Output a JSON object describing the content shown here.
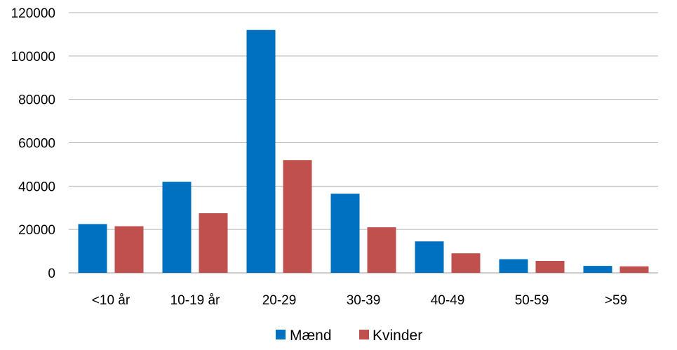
{
  "chart_data": {
    "type": "bar",
    "categories": [
      "<10 år",
      "10-19 år",
      "20-29",
      "30-39",
      "40-49",
      "50-59",
      ">59"
    ],
    "series": [
      {
        "name": "Mænd",
        "color": "#0070C0",
        "values": [
          22500,
          42000,
          112000,
          36500,
          14500,
          6300,
          3200
        ]
      },
      {
        "name": "Kvinder",
        "color": "#C0504D",
        "values": [
          21500,
          27500,
          52000,
          21000,
          9000,
          5500,
          3000
        ]
      }
    ],
    "ylim": [
      0,
      120000
    ],
    "yticks": [
      0,
      20000,
      40000,
      60000,
      80000,
      100000,
      120000
    ],
    "grid": true,
    "legend": "bottom"
  }
}
